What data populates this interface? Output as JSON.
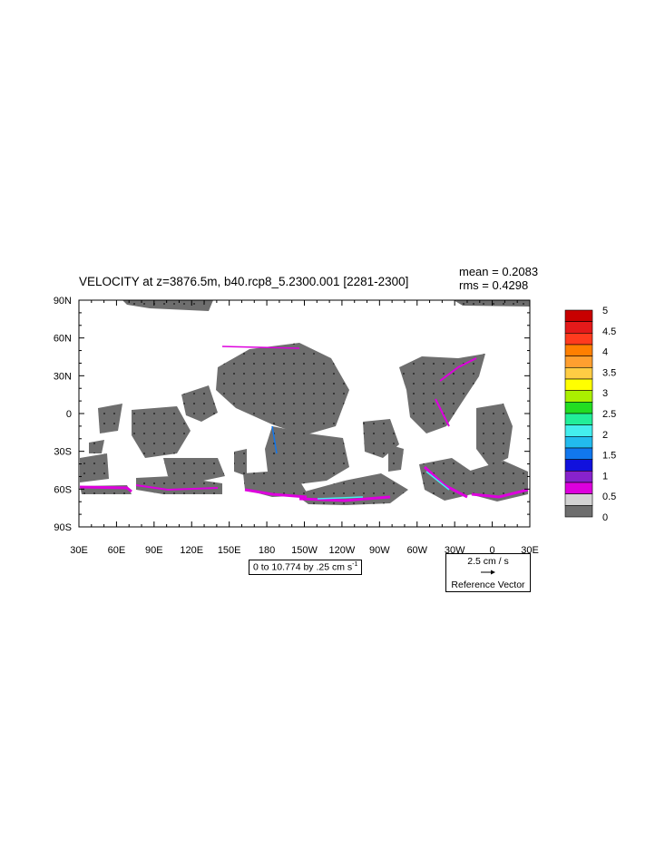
{
  "title": "VELOCITY at z=3876.5m, b40.rcp8_5.2300.001 [2281-2300]",
  "stats": {
    "mean": "mean = 0.2083",
    "rms": "rms = 0.4298"
  },
  "contour_info": "0 to 10.774 by .25 cm s",
  "contour_info_sup": "-1",
  "reference_vector": {
    "magnitude": "2.5 cm / s",
    "caption": "Reference Vector"
  },
  "lat_labels": [
    "90N",
    "60N",
    "30N",
    "0",
    "30S",
    "60S",
    "90S"
  ],
  "lon_labels": [
    "30E",
    "60E",
    "90E",
    "120E",
    "150E",
    "180",
    "150W",
    "120W",
    "90W",
    "60W",
    "30W",
    "0",
    "30E"
  ],
  "colorbar": {
    "labels": [
      "5",
      "4.5",
      "4",
      "3.5",
      "3",
      "2.5",
      "2",
      "1.5",
      "1",
      "0.5",
      "0"
    ],
    "colors_top_to_bottom": [
      "#c80000",
      "#e41a1a",
      "#ff3b1e",
      "#ff7f00",
      "#ff9f2f",
      "#ffcc44",
      "#ffff00",
      "#aaf000",
      "#22dd22",
      "#22ee99",
      "#44eeee",
      "#22bbee",
      "#1177ee",
      "#1111dd",
      "#8822cc",
      "#dd00dd",
      "#d3d3d3",
      "#6e6e6e"
    ]
  },
  "colors": {
    "land_fill": "#6e6e6e",
    "accent_velocity": "#dd00dd"
  }
}
